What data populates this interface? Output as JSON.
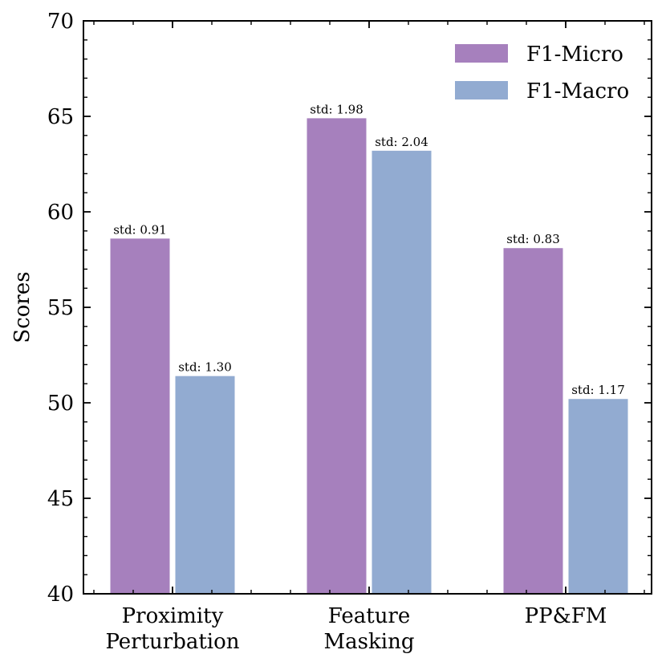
{
  "chart_data": {
    "type": "bar",
    "title": "",
    "xlabel": "",
    "ylabel": "Scores",
    "ylim": [
      40,
      70
    ],
    "yticks": [
      40,
      45,
      50,
      55,
      60,
      65,
      70
    ],
    "categories": [
      [
        "Proximity",
        "Perturbation"
      ],
      [
        "Feature",
        "Masking"
      ],
      [
        "PP&FM"
      ]
    ],
    "series": [
      {
        "name": "F1-Micro",
        "color": "#a680bd",
        "values": [
          58.6,
          64.9,
          58.1
        ],
        "labels": [
          "std: 0.91",
          "std: 1.98",
          "std: 0.83"
        ]
      },
      {
        "name": "F1-Macro",
        "color": "#92abd1",
        "values": [
          51.4,
          63.2,
          50.2
        ],
        "labels": [
          "std: 1.30",
          "std: 2.04",
          "std: 1.17"
        ]
      }
    ],
    "legend": "top-right"
  }
}
